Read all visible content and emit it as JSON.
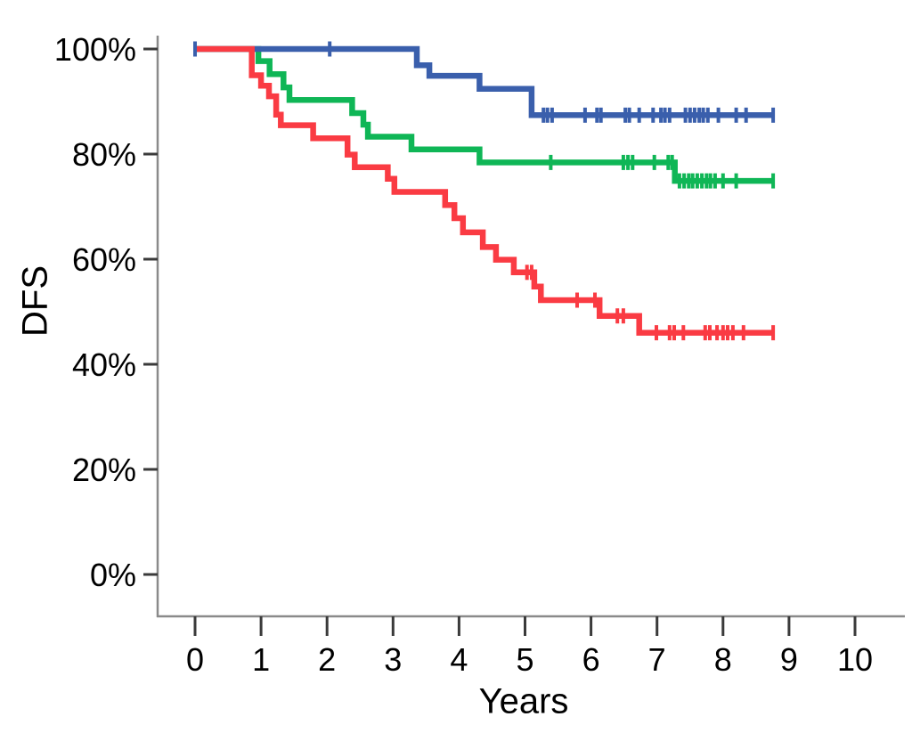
{
  "chart_data": {
    "type": "line",
    "subtype": "kaplan-meier-step-curves",
    "title": "",
    "xlabel": "Years",
    "ylabel": "DFS",
    "grid": false,
    "legend": "none",
    "xlim": [
      -0.6,
      10.8
    ],
    "ylim": [
      -8,
      104
    ],
    "x_ticks": [
      {
        "value": 0,
        "label": "0"
      },
      {
        "value": 1,
        "label": "1"
      },
      {
        "value": 2,
        "label": "2"
      },
      {
        "value": 3,
        "label": "3"
      },
      {
        "value": 4,
        "label": "4"
      },
      {
        "value": 5,
        "label": "5"
      },
      {
        "value": 6,
        "label": "6"
      },
      {
        "value": 7,
        "label": "7"
      },
      {
        "value": 8,
        "label": "8"
      },
      {
        "value": 9,
        "label": "9"
      },
      {
        "value": 10,
        "label": "10"
      }
    ],
    "y_ticks": [
      {
        "value": 0,
        "label": "0%"
      },
      {
        "value": 20,
        "label": "20%"
      },
      {
        "value": 40,
        "label": "40%"
      },
      {
        "value": 60,
        "label": "60%"
      },
      {
        "value": 80,
        "label": "80%"
      },
      {
        "value": 100,
        "label": "100%"
      }
    ],
    "series": [
      {
        "name": "blue",
        "color": "#3A5FAC",
        "end_year": 8.76,
        "steps": [
          [
            0,
            100
          ],
          [
            3.36,
            96.9
          ],
          [
            3.55,
            94.9
          ],
          [
            4.31,
            92.4
          ],
          [
            5.1,
            87.4
          ]
        ],
        "censors": [
          0,
          2.04,
          5.28,
          5.34,
          5.41,
          5.91,
          6.09,
          6.15,
          6.52,
          6.58,
          6.73,
          6.94,
          7.06,
          7.12,
          7.19,
          7.43,
          7.5,
          7.57,
          7.64,
          7.7,
          7.77,
          7.93,
          8.2,
          8.35,
          8.76
        ]
      },
      {
        "name": "green",
        "color": "#0FB656",
        "end_year": 8.76,
        "steps": [
          [
            0,
            100
          ],
          [
            0.96,
            97.7
          ],
          [
            1.13,
            95.2
          ],
          [
            1.34,
            92.7
          ],
          [
            1.43,
            90.3
          ],
          [
            2.38,
            87.8
          ],
          [
            2.55,
            85.6
          ],
          [
            2.62,
            83.3
          ],
          [
            3.28,
            80.9
          ],
          [
            4.31,
            78.4
          ],
          [
            7.27,
            74.9
          ]
        ],
        "censors": [
          5.39,
          6.49,
          6.56,
          6.63,
          6.96,
          7.17,
          7.23,
          7.34,
          7.41,
          7.48,
          7.54,
          7.61,
          7.68,
          7.75,
          7.81,
          7.88,
          8.0,
          8.2,
          8.76
        ]
      },
      {
        "name": "red",
        "color": "#FA3B43",
        "end_year": 8.76,
        "steps": [
          [
            0,
            100
          ],
          [
            0.86,
            95.0
          ],
          [
            1.0,
            93.0
          ],
          [
            1.12,
            91.0
          ],
          [
            1.23,
            87.5
          ],
          [
            1.3,
            85.5
          ],
          [
            1.79,
            83.0
          ],
          [
            2.31,
            79.9
          ],
          [
            2.42,
            77.5
          ],
          [
            2.92,
            75.3
          ],
          [
            3.02,
            72.8
          ],
          [
            3.79,
            70.3
          ],
          [
            3.93,
            67.8
          ],
          [
            4.06,
            65.1
          ],
          [
            4.36,
            62.3
          ],
          [
            4.56,
            59.9
          ],
          [
            4.83,
            57.5
          ],
          [
            5.14,
            54.8
          ],
          [
            5.24,
            52.2
          ],
          [
            6.13,
            49.2
          ],
          [
            6.73,
            46.0
          ]
        ],
        "censors": [
          5.03,
          5.1,
          5.79,
          6.06,
          6.4,
          6.49,
          6.99,
          7.19,
          7.26,
          7.4,
          7.73,
          7.8,
          7.91,
          8.0,
          8.07,
          8.15,
          8.31,
          8.76
        ]
      }
    ]
  }
}
